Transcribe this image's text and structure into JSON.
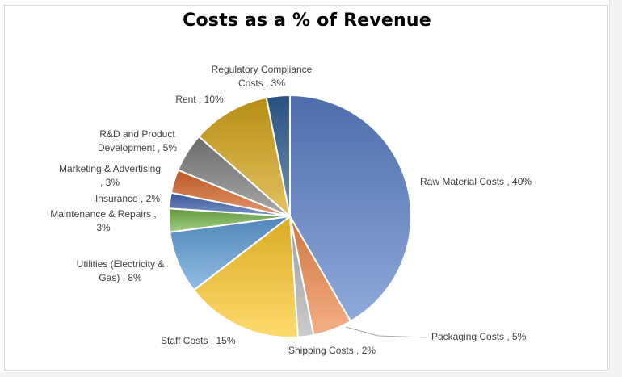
{
  "chart_data": {
    "type": "pie",
    "title": "Costs as a % of Revenue",
    "slices": [
      {
        "label": "Raw Material Costs",
        "value": 40,
        "value_label": "40%",
        "color": "#5b80c9"
      },
      {
        "label": "Packaging Costs",
        "value": 5,
        "value_label": "5%",
        "color": "#f08a4b"
      },
      {
        "label": "Shipping Costs",
        "value": 2,
        "value_label": "2%",
        "color": "#b4b4b4"
      },
      {
        "label": "Staff Costs",
        "value": 15,
        "value_label": "15%",
        "color": "#ffc92a"
      },
      {
        "label": "Utilities (Electricity & Gas)",
        "value": 8,
        "value_label": "8%",
        "color": "#5e9ed8"
      },
      {
        "label": "Maintenance & Repairs",
        "value": 3,
        "value_label": "3%",
        "color": "#74b54a"
      },
      {
        "label": "Insurance",
        "value": 2,
        "value_label": "2%",
        "color": "#3f63b0"
      },
      {
        "label": "Marketing & Advertising",
        "value": 3,
        "value_label": "3%",
        "color": "#d9662a"
      },
      {
        "label": "R&D and Product Development",
        "value": 5,
        "value_label": "5%",
        "color": "#7f7f7f"
      },
      {
        "label": "Rent",
        "value": 10,
        "value_label": "10%",
        "color": "#d7a617"
      },
      {
        "label": "Regulatory Compliance Costs",
        "value": 3,
        "value_label": "3%",
        "color": "#2e5f94"
      }
    ],
    "data_labels": [
      [
        "Raw Material Costs , 40%"
      ],
      [
        "Packaging Costs , 5%"
      ],
      [
        "Shipping Costs , 2%"
      ],
      [
        "Staff Costs , 15%"
      ],
      [
        "Utilities (Electricity &",
        "Gas) , 8%"
      ],
      [
        "Maintenance & Repairs ,",
        "3%"
      ],
      [
        "Insurance , 2%"
      ],
      [
        "Marketing & Advertising",
        ", 3%"
      ],
      [
        "R&D and Product",
        "Development , 5%"
      ],
      [
        "Rent , 10%"
      ],
      [
        "Regulatory Compliance",
        "Costs , 3%"
      ]
    ]
  }
}
